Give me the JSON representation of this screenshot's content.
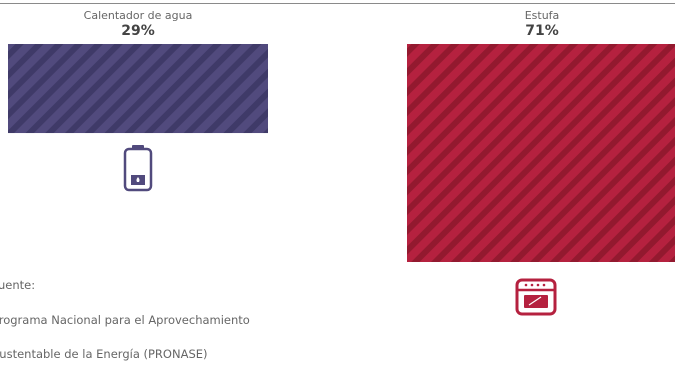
{
  "chart_data": {
    "type": "bar",
    "categories": [
      "Calentador de agua",
      "Estufa"
    ],
    "values": [
      29,
      71
    ],
    "value_labels": [
      "29%",
      "71%"
    ],
    "unit": "%",
    "ylim": [
      0,
      71
    ],
    "colors": [
      "#514a7d",
      "#b5213f"
    ],
    "stripe_colors": [
      "#3f3a68",
      "#93192f"
    ],
    "grid": false,
    "legend": "none"
  },
  "icons": [
    "water-heater-icon",
    "stove-oven-icon"
  ],
  "source": {
    "label": "Fuente:",
    "line1": "Programa Nacional para el Aprovechamiento",
    "line2": "Sustentable de la Energía (PRONASE)"
  }
}
